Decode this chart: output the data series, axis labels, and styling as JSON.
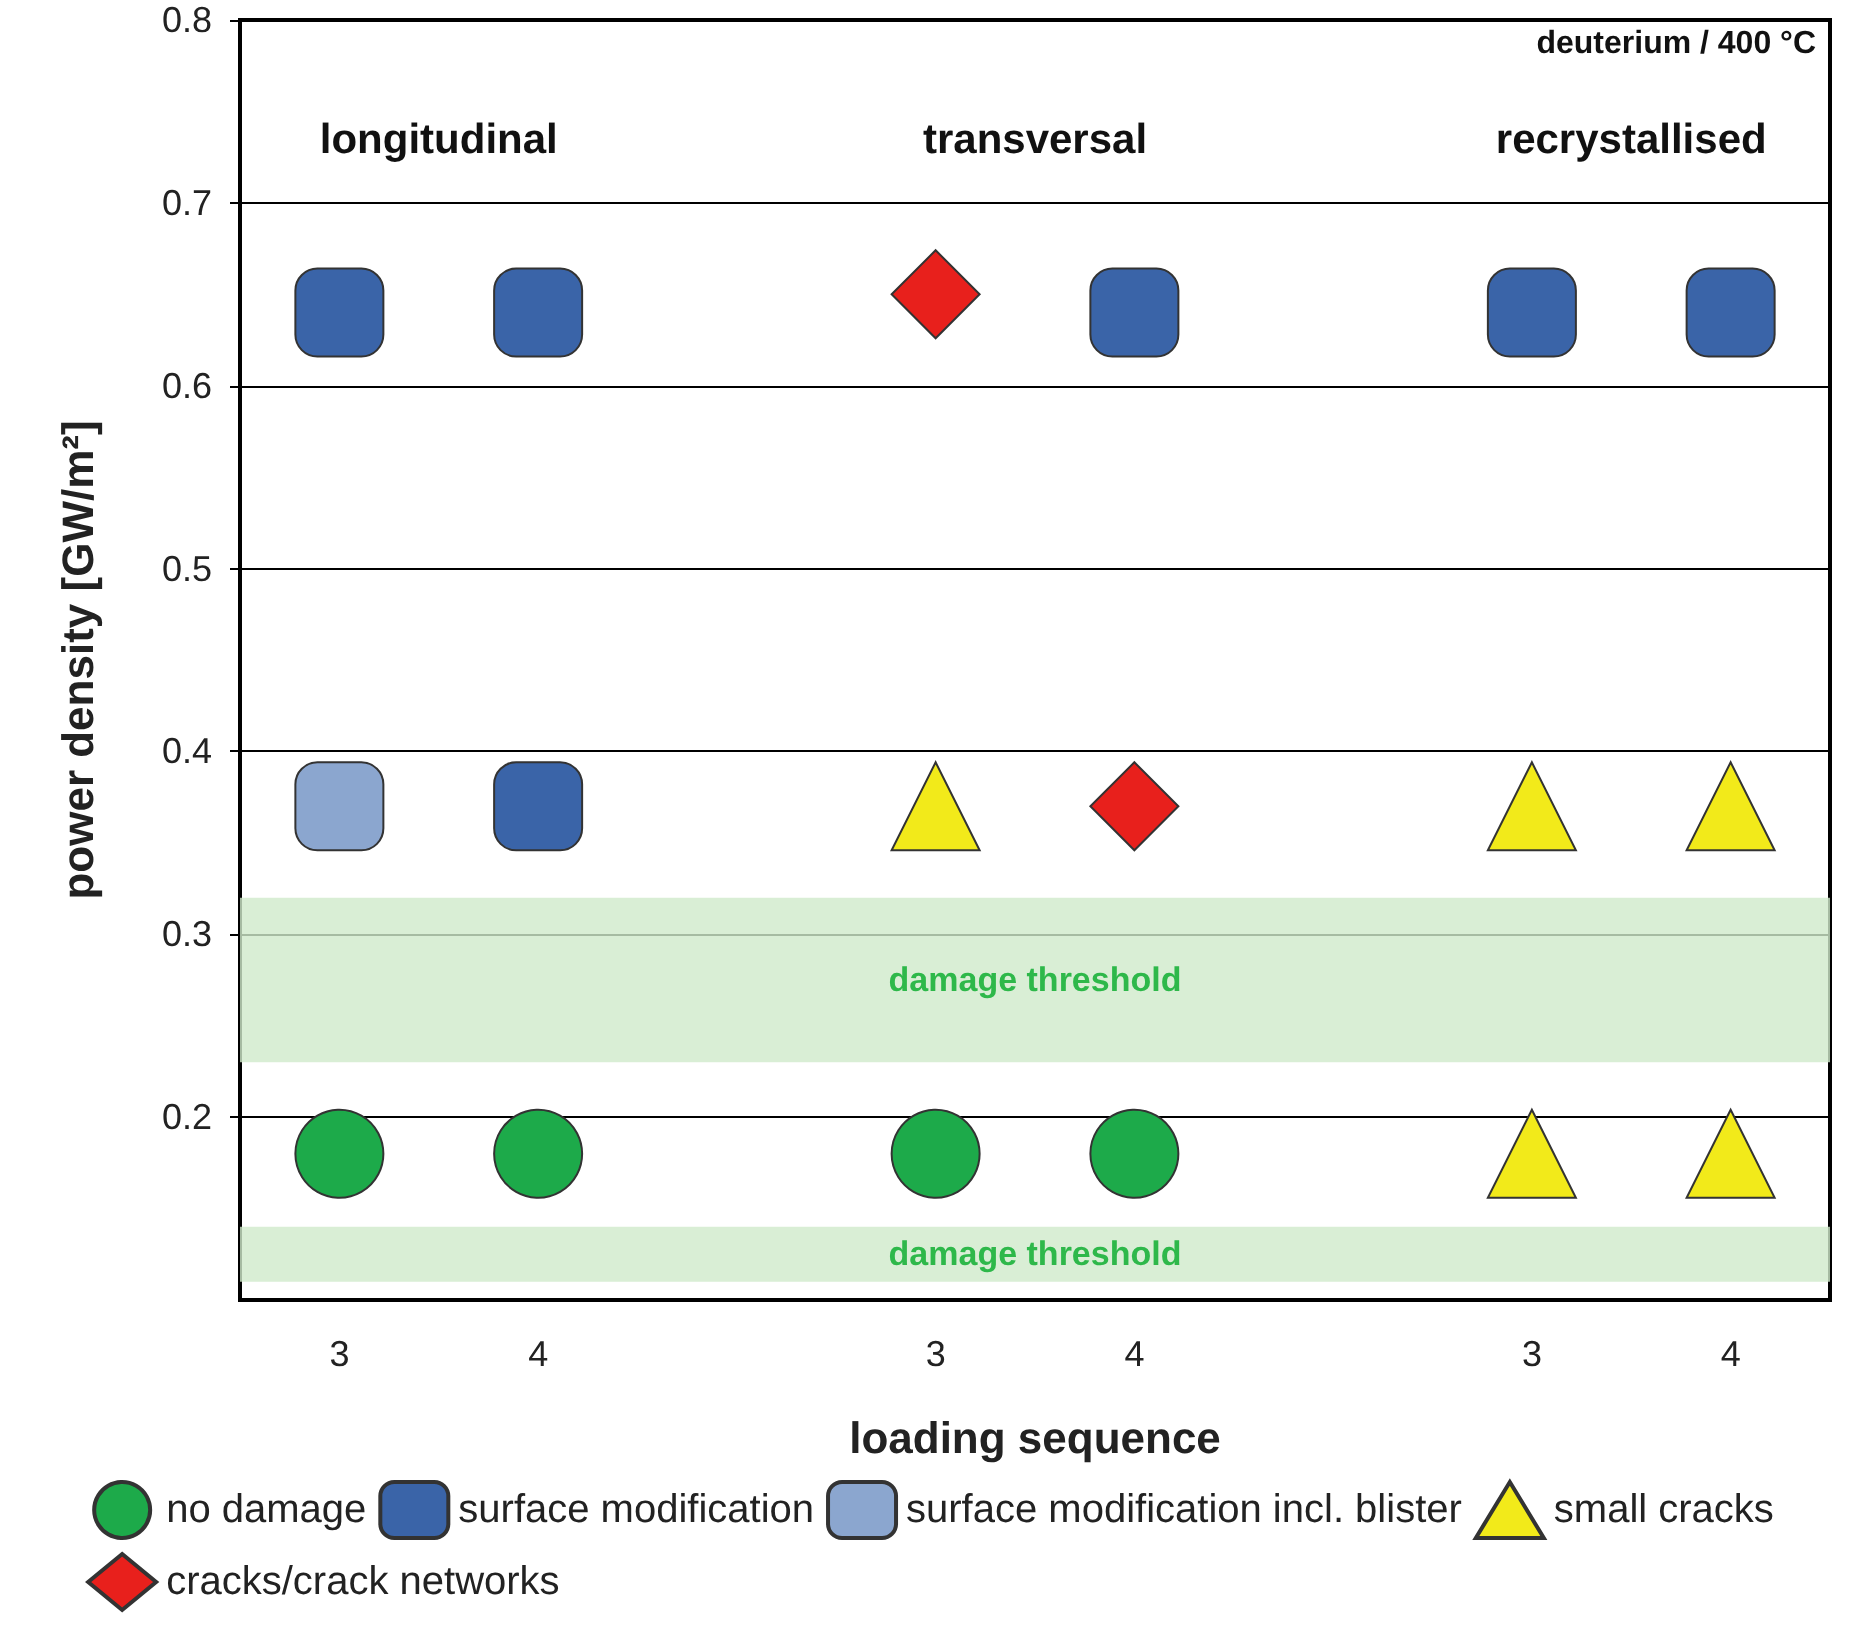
{
  "chart_data": {
    "type": "scatter",
    "xlabel": "loading sequence",
    "ylabel": "power density [GW/m²]",
    "categories": [
      "3",
      "4",
      null,
      "3",
      "4",
      null,
      "3",
      "4"
    ],
    "ylim": [
      0.1,
      0.8
    ],
    "yticks": [
      0.2,
      0.3,
      0.4,
      0.5,
      0.6,
      0.7,
      0.8
    ],
    "grid": "y",
    "legend": "bottom",
    "series": [
      {
        "name": "no damage",
        "color": "#1daa4a",
        "marker": "circle",
        "values": [
          0.18,
          0.18,
          null,
          0.18,
          0.18,
          null,
          null,
          null
        ]
      },
      {
        "name": "surface modification",
        "color": "#3a64a8",
        "marker": "square",
        "values": [
          0.64,
          0.64,
          null,
          null,
          0.64,
          null,
          0.64,
          0.64
        ]
      },
      {
        "color": "#3a64a8",
        "marker": "square",
        "values": [
          null,
          0.37,
          null,
          null,
          null,
          null,
          null,
          null
        ]
      },
      {
        "name": "surface modification incl. blister",
        "color": "#8ba6cf",
        "marker": "square",
        "values": [
          0.37,
          null,
          null,
          null,
          null,
          null,
          null,
          null
        ]
      },
      {
        "name": "small cracks",
        "color": "#f2ea1a",
        "marker": "triangle",
        "values": [
          null,
          null,
          null,
          0.37,
          null,
          null,
          0.18,
          0.18
        ]
      },
      {
        "color": "#f2ea1a",
        "marker": "triangle",
        "values": [
          null,
          null,
          null,
          null,
          null,
          null,
          0.37,
          0.37
        ]
      },
      {
        "name": "cracks/crack networks",
        "color": "#e8201c",
        "marker": "diamond",
        "values": [
          null,
          null,
          null,
          0.65,
          0.37,
          null,
          null,
          null
        ]
      }
    ],
    "bands": [
      {
        "axis": "y",
        "from": 0.23,
        "to": 0.32,
        "label": "damage threshold",
        "color": "#cfeacb"
      },
      {
        "axis": "y",
        "from": 0.11,
        "to": 0.14,
        "label": "damage threshold",
        "color": "#cfeacb"
      }
    ],
    "annotations": [
      "longitudinal",
      "transversal",
      "recrystallised",
      "deuterium / 400 °C"
    ]
  }
}
